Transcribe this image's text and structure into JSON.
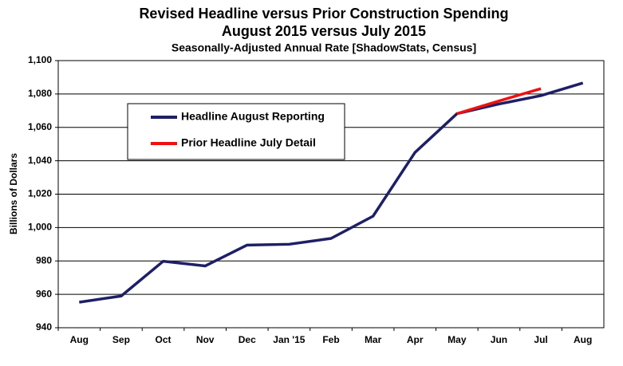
{
  "chart_data": {
    "type": "line",
    "title": "Revised Headline versus Prior Construction Spending",
    "subtitle": "August 2015 versus July 2015",
    "note": "Seasonally-Adjusted Annual Rate [ShadowStats, Census]",
    "ylabel": "Billions of Dollars",
    "categories": [
      "Aug",
      "Sep",
      "Oct",
      "Nov",
      "Dec",
      "Jan '15",
      "Feb",
      "Mar",
      "Apr",
      "May",
      "Jun",
      "Jul",
      "Aug"
    ],
    "series": [
      {
        "name": "Headline August Reporting",
        "color": "#1f1f66",
        "values": [
          955.3,
          959,
          979.8,
          977,
          989.5,
          990,
          993.5,
          1006.8,
          1045,
          1068.2,
          1074,
          1079,
          1086.6
        ]
      },
      {
        "name": "Prior Headline July Detail",
        "color": "#ee1111",
        "values": [
          null,
          null,
          null,
          null,
          null,
          null,
          null,
          null,
          null,
          1068.2,
          1075.8,
          1083.2,
          null
        ]
      }
    ],
    "ylim": [
      940,
      1100
    ],
    "yticks": [
      940,
      960,
      980,
      1000,
      {
        "value": 1000,
        "label": "1,000"
      },
      {
        "value": 1020,
        "label": "1,020"
      },
      {
        "value": 1040,
        "label": "1,040"
      },
      {
        "value": 1060,
        "label": "1,060"
      },
      {
        "value": 1080,
        "label": "1,080"
      },
      {
        "value": 1100,
        "label": "1,100"
      }
    ],
    "grid": true
  }
}
